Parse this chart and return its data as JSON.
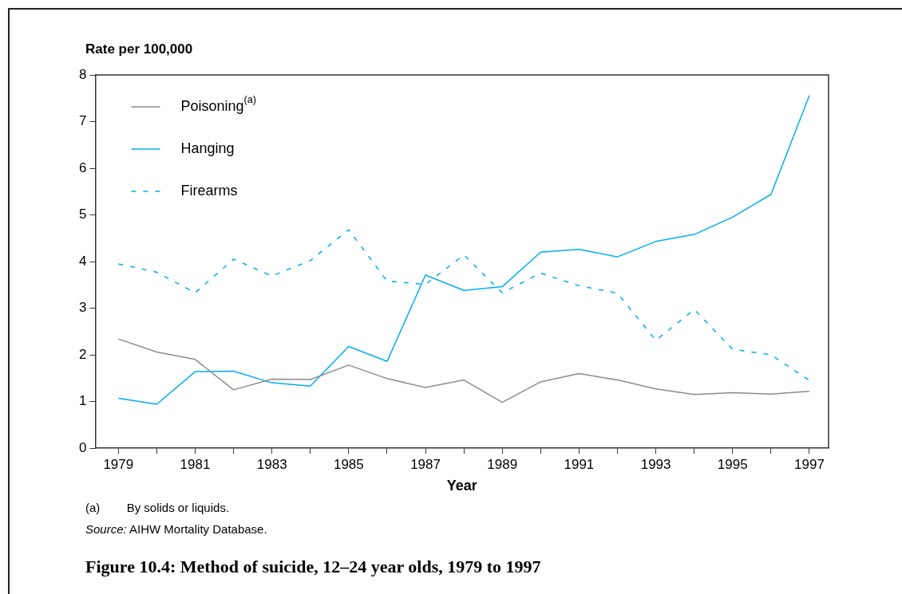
{
  "chart_data": {
    "type": "line",
    "title": "Figure 10.4: Method of suicide, 12–24 year olds, 1979 to 1997",
    "xlabel": "Year",
    "ylabel": "Rate per 100,000",
    "annotations": [
      "(a)        By solids or liquids.",
      "Source: AIHW Mortality Database."
    ],
    "x": [
      1979,
      1980,
      1981,
      1982,
      1983,
      1984,
      1985,
      1986,
      1987,
      1988,
      1989,
      1990,
      1991,
      1992,
      1993,
      1994,
      1995,
      1996,
      1997
    ],
    "series": [
      {
        "name": "Poisoning$^{(a)}$",
        "color": "#8c8c8c",
        "line_style": "solid",
        "values": [
          2.34,
          2.06,
          1.9,
          1.25,
          1.48,
          1.47,
          1.78,
          1.49,
          1.3,
          1.46,
          0.98,
          1.42,
          1.6,
          1.46,
          1.27,
          1.15,
          1.19,
          1.16,
          1.22
        ]
      },
      {
        "name": "Hanging",
        "color": "#00aeef",
        "line_style": "solid",
        "values": [
          1.07,
          0.94,
          1.64,
          1.65,
          1.4,
          1.33,
          2.18,
          1.86,
          3.71,
          3.38,
          3.46,
          4.2,
          4.26,
          4.1,
          4.43,
          4.58,
          4.95,
          5.44,
          7.56
        ]
      },
      {
        "name": "Firearms",
        "color": "#00aeef",
        "line_style": "dashed",
        "values": [
          3.95,
          3.77,
          3.33,
          4.05,
          3.69,
          4.02,
          4.68,
          3.58,
          3.51,
          4.14,
          3.33,
          3.75,
          3.48,
          3.32,
          2.31,
          2.97,
          2.12,
          2.0,
          1.45
        ]
      }
    ],
    "xlim": [
      1978.4,
      1997.5
    ],
    "xticks": [
      1979,
      {
        "value": 1980,
        "label": null
      },
      1981,
      {
        "value": 1982,
        "label": null
      },
      1983,
      {
        "value": 1984,
        "label": null
      },
      1985,
      {
        "value": 1986,
        "label": null
      },
      1987,
      {
        "value": 1988,
        "label": null
      },
      1989,
      {
        "value": 1990,
        "label": null
      },
      1991,
      {
        "value": 1992,
        "label": null
      },
      1993,
      {
        "value": 1994,
        "label": null
      },
      1995,
      {
        "value": 1996,
        "label": null
      },
      1997
    ],
    "ylim": [
      0,
      8
    ],
    "yticks": [
      0,
      1,
      2,
      3,
      4,
      5,
      6,
      7,
      8
    ],
    "grid": false,
    "legend": "top left",
    "marker": "none"
  }
}
